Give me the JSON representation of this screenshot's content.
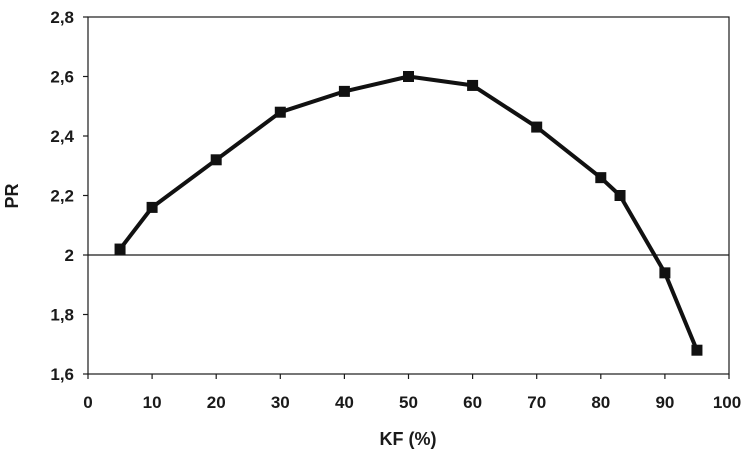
{
  "chart_data": {
    "type": "line",
    "title": "",
    "xlabel": "KF (%)",
    "ylabel": "PR",
    "xlim": [
      0,
      100
    ],
    "ylim": [
      1.6,
      2.8
    ],
    "x_ticks": [
      0,
      10,
      20,
      30,
      40,
      50,
      60,
      70,
      80,
      90,
      100
    ],
    "x_tick_labels": [
      "0",
      "10",
      "20",
      "30",
      "40",
      "50",
      "60",
      "70",
      "80",
      "90",
      "100"
    ],
    "y_ticks": [
      1.6,
      1.8,
      2.0,
      2.2,
      2.4,
      2.6,
      2.8
    ],
    "y_tick_labels": [
      "1,6",
      "1,8",
      "2",
      "2,2",
      "2,4",
      "2,6",
      "2,8"
    ],
    "reference_line": 2.0,
    "grid": false,
    "legend": "none",
    "marker": "square",
    "color": "#111111",
    "series": [
      {
        "x": [
          5,
          10,
          20,
          30,
          40,
          50,
          60,
          70,
          80,
          83,
          90,
          95
        ],
        "y": [
          2.02,
          2.16,
          2.32,
          2.48,
          2.55,
          2.6,
          2.57,
          2.43,
          2.26,
          2.2,
          1.94,
          1.68
        ]
      }
    ]
  }
}
